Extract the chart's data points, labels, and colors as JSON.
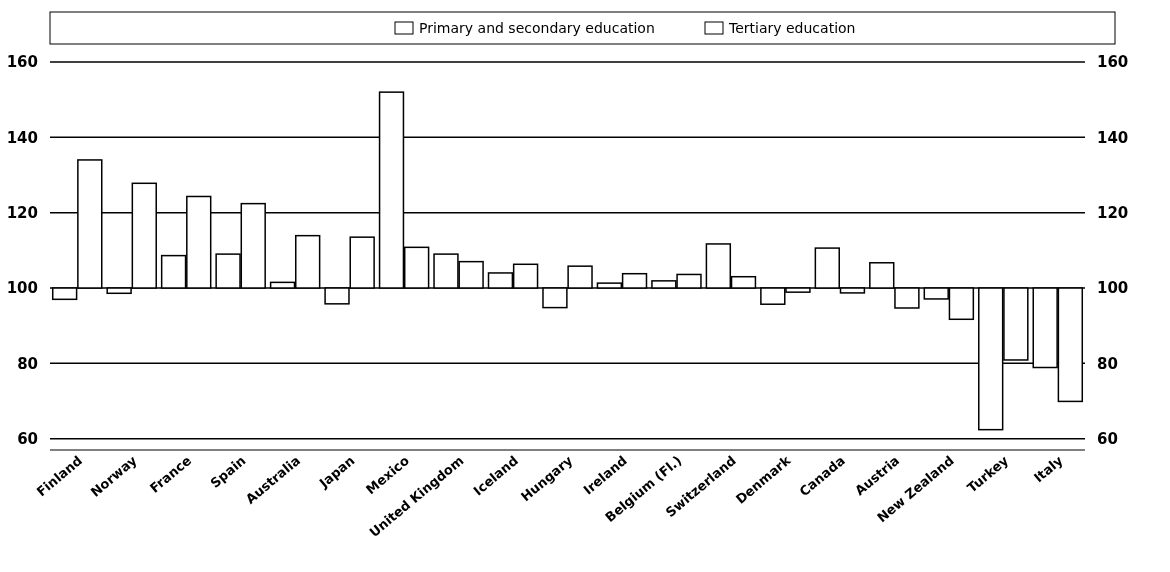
{
  "chart_data": {
    "type": "bar",
    "categories": [
      "Finland",
      "Norway",
      "France",
      "Spain",
      "Australia",
      "Japan",
      "Mexico",
      "United Kingdom",
      "Iceland",
      "Hungary",
      "Ireland",
      "Belgium (Fl.)",
      "Switzerland",
      "Denmark",
      "Canada",
      "Austria",
      "New Zealand",
      "Turkey",
      "Italy"
    ],
    "series": [
      {
        "name": "Primary and secondary education",
        "color": "#ffffff",
        "base": [
          100,
          100,
          100,
          100,
          100,
          100,
          100,
          100,
          100,
          100,
          100,
          100,
          100,
          100,
          100,
          100,
          100,
          100,
          100
        ],
        "values": [
          -3,
          -1.4,
          8.6,
          9,
          1.5,
          -4.2,
          52,
          9,
          4,
          -5.2,
          1.3,
          1.9,
          11.7,
          -4.3,
          10.6,
          6.7,
          -2.9,
          -37.6,
          -21.1
        ]
      },
      {
        "name": "Tertiary education",
        "color": "#ffffff",
        "base": [
          100,
          100,
          100,
          100,
          100,
          100,
          100,
          100,
          100,
          100,
          100,
          100,
          100,
          100,
          100,
          100,
          100,
          100,
          100
        ],
        "values": [
          34,
          27.8,
          24.3,
          22.4,
          13.9,
          13.5,
          10.8,
          7,
          6.3,
          5.8,
          3.8,
          3.6,
          3,
          -1.1,
          -1.3,
          -5.3,
          -8.3,
          -19.1,
          -30.1
        ]
      }
    ],
    "ylim": [
      57,
      160
    ],
    "yticks": [
      60,
      80,
      100,
      120,
      140,
      160
    ],
    "y2lim": [
      57,
      160
    ],
    "y2ticks": [
      60,
      80,
      100,
      120,
      140,
      160
    ],
    "grid": "y",
    "legend": "top"
  }
}
